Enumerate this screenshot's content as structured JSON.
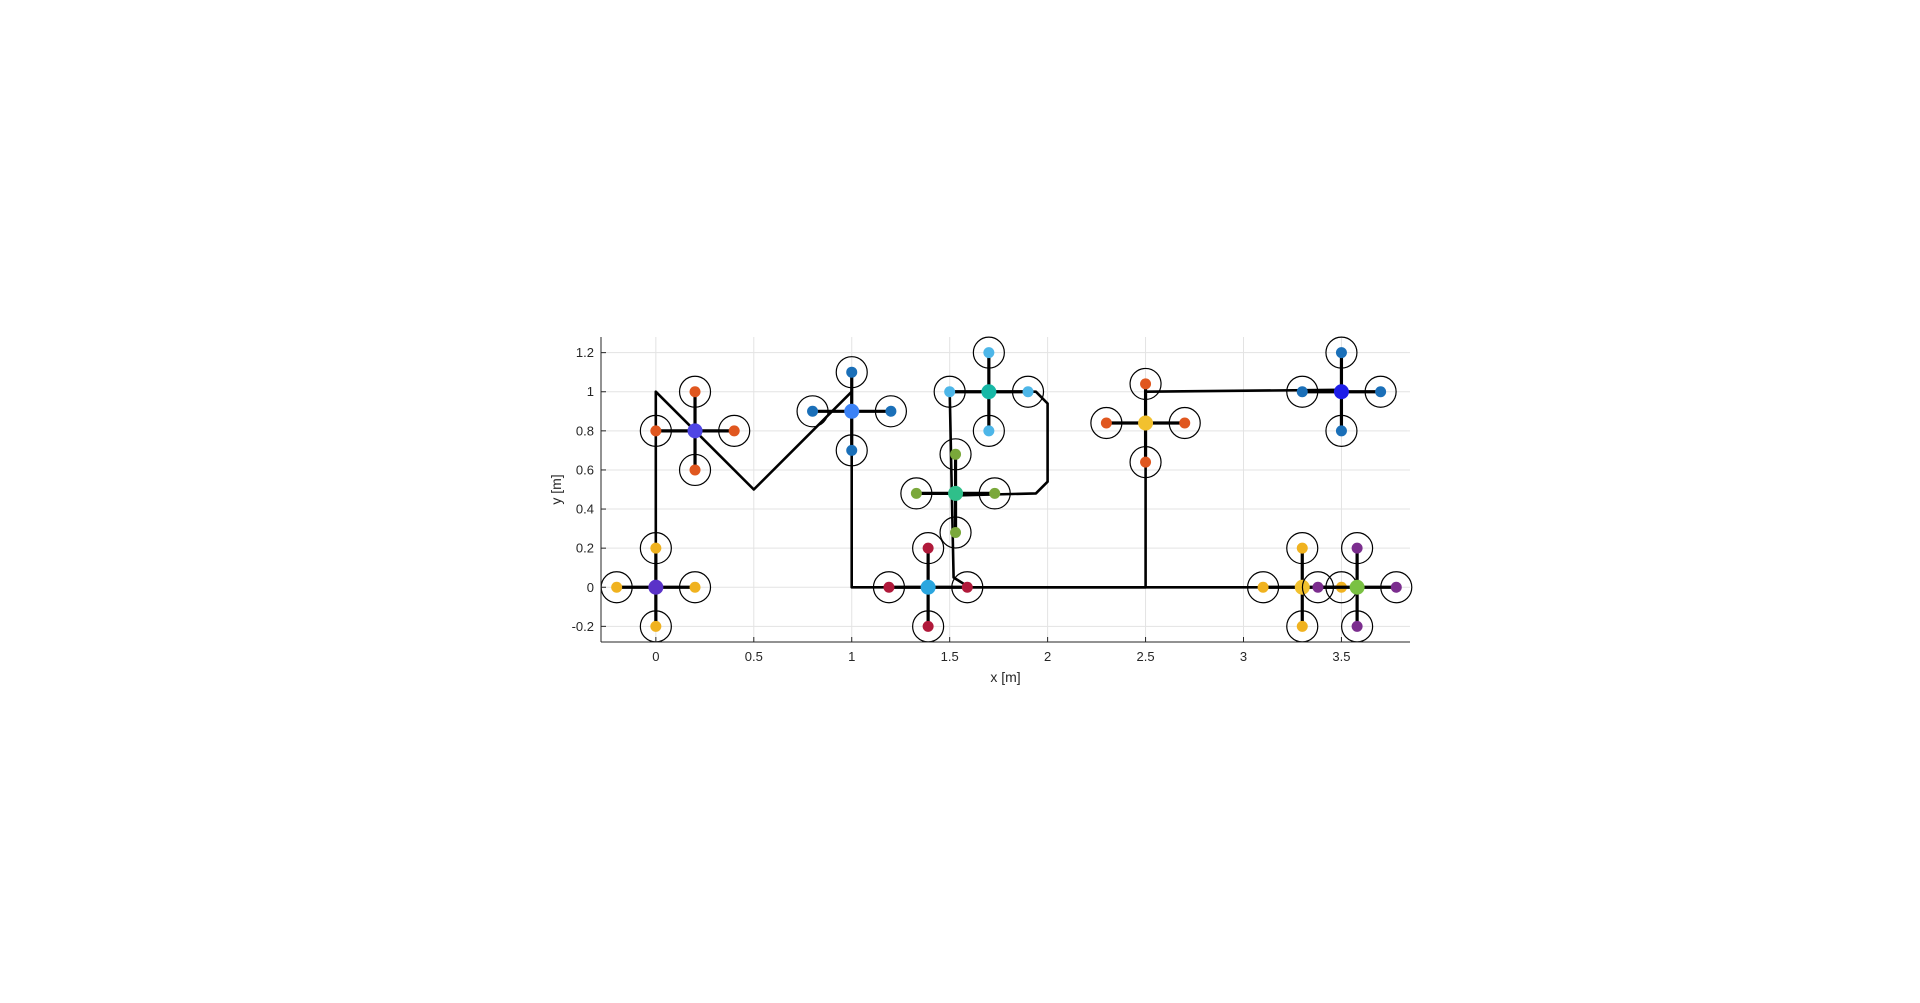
{
  "chart_data": {
    "type": "scatter",
    "title": "",
    "xlabel": "x [m]",
    "ylabel": "y [m]",
    "xlim": [
      -0.28,
      3.85
    ],
    "ylim": [
      -0.28,
      1.28
    ],
    "grid": true,
    "x_ticks": [
      0,
      0.5,
      1,
      1.5,
      2,
      2.5,
      3,
      3.5
    ],
    "x_tick_labels": [
      "0",
      "0.5",
      "1",
      "1.5",
      "2",
      "2.5",
      "3",
      "3.5"
    ],
    "y_ticks": [
      -0.2,
      0,
      0.2,
      0.4,
      0.6,
      0.8,
      1,
      1.2
    ],
    "y_tick_labels": [
      "-0.2",
      "0",
      "0.2",
      "0.4",
      "0.6",
      "0.8",
      "1",
      "1.2"
    ],
    "trajectories": [
      {
        "points": [
          [
            0,
            0
          ],
          [
            0,
            1
          ],
          [
            0.5,
            0.5
          ],
          [
            1,
            1
          ],
          [
            1,
            0
          ],
          [
            2.5,
            0
          ],
          [
            2.5,
            1
          ],
          [
            3.5,
            1.01
          ]
        ]
      },
      {
        "points": [
          [
            1.5,
            1.0
          ],
          [
            1.52,
            0.05
          ],
          [
            1.6,
            0.0
          ],
          [
            3.7,
            0.0
          ]
        ]
      },
      {
        "points": [
          [
            1.5,
            1.0
          ],
          [
            1.94,
            1.0
          ],
          [
            2.0,
            0.94
          ],
          [
            2.0,
            0.54
          ],
          [
            1.94,
            0.48
          ],
          [
            1.53,
            0.47
          ]
        ]
      }
    ],
    "drones": [
      {
        "x": 0.2,
        "y": 0.8,
        "orientation": "plus",
        "body_color": "#4f46e5",
        "rotor_color": "#e0571f"
      },
      {
        "x": 1.0,
        "y": 0.9,
        "orientation": "plus",
        "body_color": "#3b82f6",
        "rotor_color": "#1a6fb8"
      },
      {
        "x": 1.7,
        "y": 1.0,
        "orientation": "plus",
        "body_color": "#17b8a6",
        "rotor_color": "#4db6e8"
      },
      {
        "x": 2.5,
        "y": 0.84,
        "orientation": "plus",
        "body_color": "#f2c12e",
        "rotor_color": "#e0571f"
      },
      {
        "x": 3.5,
        "y": 1.0,
        "orientation": "plus",
        "body_color": "#1d1de8",
        "rotor_color": "#1a6fb8"
      },
      {
        "x": 1.53,
        "y": 0.48,
        "orientation": "plus",
        "body_color": "#2fbf8a",
        "rotor_color": "#7aa83a"
      },
      {
        "x": 0.0,
        "y": 0.0,
        "orientation": "plus",
        "body_color": "#5a32c8",
        "rotor_color": "#f0b21f"
      },
      {
        "x": 1.39,
        "y": 0.0,
        "orientation": "plus",
        "body_color": "#2aa6df",
        "rotor_color": "#b0193a"
      },
      {
        "x": 3.3,
        "y": 0.0,
        "orientation": "plus",
        "body_color": "#f2c12e",
        "rotor_color": "#f0b21f"
      },
      {
        "x": 3.58,
        "y": 0.0,
        "orientation": "plus",
        "body_color": "#7ac143",
        "rotor_color": "#7b2d8e"
      }
    ],
    "arm_length": 0.2,
    "colors": {
      "axis": "#262626",
      "grid": "#e3e3e3",
      "trajectory": "#000000"
    }
  }
}
